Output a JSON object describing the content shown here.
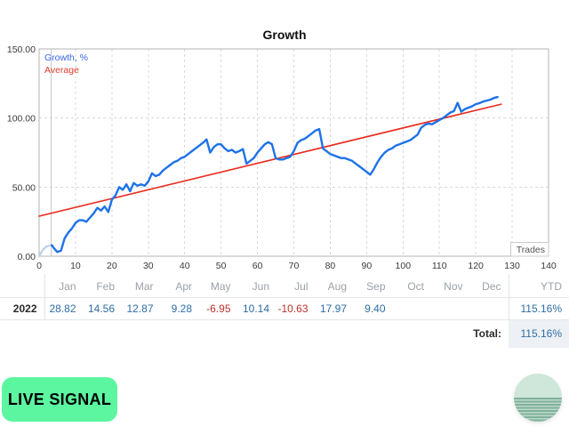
{
  "chart": {
    "title": "Growth",
    "axis_label": "Trades",
    "legend": [
      {
        "label": "Growth, %",
        "color": "#3867e6"
      },
      {
        "label": "Average",
        "color": "#e23b2e"
      }
    ]
  },
  "chart_data": {
    "type": "line",
    "title": "Growth",
    "xlabel": "Trades",
    "ylabel": "",
    "xlim": [
      0,
      140
    ],
    "ylim": [
      0,
      150
    ],
    "x_ticks": [
      0,
      10,
      20,
      30,
      40,
      50,
      60,
      70,
      80,
      90,
      100,
      110,
      120,
      130,
      140
    ],
    "y_ticks": [
      {
        "value": 0,
        "label": "0.00"
      },
      {
        "value": 50,
        "label": "50.00"
      },
      {
        "value": 100,
        "label": "100.00"
      },
      {
        "value": 150,
        "label": "150.00"
      }
    ],
    "grid": true,
    "legend_position": "top-left",
    "start_marker_x": 3.3,
    "series": [
      {
        "name": "Average",
        "color": "#e8291c",
        "width": 1.6,
        "points": [
          [
            0,
            29
          ],
          [
            127,
            110
          ]
        ]
      },
      {
        "name": "initial-segment",
        "color": "#b9cfe6",
        "width": 2.2,
        "points": [
          [
            0,
            0
          ],
          [
            1,
            4.5
          ],
          [
            2,
            7
          ],
          [
            3.5,
            8
          ]
        ]
      },
      {
        "name": "Growth, %",
        "color": "#1d72e8",
        "width": 2.4,
        "points": [
          [
            3.5,
            8
          ],
          [
            4,
            6
          ],
          [
            5,
            3
          ],
          [
            6,
            4
          ],
          [
            7,
            13
          ],
          [
            8,
            17
          ],
          [
            9,
            20
          ],
          [
            10,
            24
          ],
          [
            11,
            26
          ],
          [
            12,
            26
          ],
          [
            13,
            25
          ],
          [
            14,
            28
          ],
          [
            15,
            31
          ],
          [
            16,
            35
          ],
          [
            17,
            33
          ],
          [
            18,
            36
          ],
          [
            19,
            32
          ],
          [
            20,
            41
          ],
          [
            21,
            44
          ],
          [
            22,
            50
          ],
          [
            23,
            48
          ],
          [
            24,
            52
          ],
          [
            25,
            47
          ],
          [
            26,
            53
          ],
          [
            27,
            51
          ],
          [
            28,
            52
          ],
          [
            29,
            51
          ],
          [
            30,
            54
          ],
          [
            31,
            60
          ],
          [
            32,
            58
          ],
          [
            33,
            59
          ],
          [
            34,
            62
          ],
          [
            35,
            64
          ],
          [
            36,
            66
          ],
          [
            37,
            68
          ],
          [
            38,
            69
          ],
          [
            39,
            71
          ],
          [
            40,
            72
          ],
          [
            41,
            74
          ],
          [
            42,
            76
          ],
          [
            43,
            78
          ],
          [
            44,
            80
          ],
          [
            45,
            82
          ],
          [
            46,
            84.5
          ],
          [
            47,
            75
          ],
          [
            48,
            79
          ],
          [
            49,
            81
          ],
          [
            50,
            81
          ],
          [
            51,
            78
          ],
          [
            52,
            76
          ],
          [
            53,
            77
          ],
          [
            54,
            75
          ],
          [
            55,
            76
          ],
          [
            56,
            77.5
          ],
          [
            57,
            67
          ],
          [
            58,
            69
          ],
          [
            59,
            71
          ],
          [
            60,
            75
          ],
          [
            61,
            78
          ],
          [
            62,
            81
          ],
          [
            63,
            82.5
          ],
          [
            64,
            81
          ],
          [
            65,
            71
          ],
          [
            66,
            70
          ],
          [
            67,
            70
          ],
          [
            68,
            71
          ],
          [
            69,
            72
          ],
          [
            70,
            76
          ],
          [
            71,
            82
          ],
          [
            72,
            84
          ],
          [
            73,
            85
          ],
          [
            74,
            87
          ],
          [
            75,
            89
          ],
          [
            76,
            91
          ],
          [
            77,
            92
          ],
          [
            78,
            78
          ],
          [
            79,
            76
          ],
          [
            80,
            74
          ],
          [
            81,
            73
          ],
          [
            82,
            72
          ],
          [
            83,
            71
          ],
          [
            84,
            71
          ],
          [
            85,
            70
          ],
          [
            86,
            69
          ],
          [
            87,
            67
          ],
          [
            88,
            65
          ],
          [
            89,
            63
          ],
          [
            90,
            61
          ],
          [
            91,
            59
          ],
          [
            92,
            63
          ],
          [
            93,
            68
          ],
          [
            94,
            72
          ],
          [
            95,
            75
          ],
          [
            96,
            77
          ],
          [
            97,
            78
          ],
          [
            98,
            80
          ],
          [
            99,
            81
          ],
          [
            100,
            82
          ],
          [
            101,
            83
          ],
          [
            102,
            84
          ],
          [
            103,
            86
          ],
          [
            104,
            88
          ],
          [
            105,
            93
          ],
          [
            106,
            95
          ],
          [
            107,
            96
          ],
          [
            108,
            95.5
          ],
          [
            109,
            97
          ],
          [
            110,
            98.5
          ],
          [
            111,
            100
          ],
          [
            112,
            102
          ],
          [
            113,
            104
          ],
          [
            114,
            105
          ],
          [
            115,
            111
          ],
          [
            116,
            104.5
          ],
          [
            117,
            106.5
          ],
          [
            118,
            107.5
          ],
          [
            119,
            108.5
          ],
          [
            120,
            110
          ],
          [
            121,
            110.7
          ],
          [
            122,
            111.9
          ],
          [
            123,
            112.6
          ],
          [
            124,
            113.3
          ],
          [
            125,
            114.5
          ],
          [
            126,
            115.16
          ]
        ]
      }
    ]
  },
  "table": {
    "headers": [
      "",
      "Jan",
      "Feb",
      "Mar",
      "Apr",
      "May",
      "Jun",
      "Jul",
      "Aug",
      "Sep",
      "Oct",
      "Nov",
      "Dec",
      "YTD"
    ],
    "rows": [
      {
        "year": "2022",
        "values": [
          "28.82",
          "14.56",
          "12.87",
          "9.28",
          "-6.95",
          "10.14",
          "-10.63",
          "17.97",
          "9.40",
          "",
          "",
          ""
        ],
        "ytd": "115.16%"
      }
    ],
    "total_label": "Total:",
    "total_value": "115.16%"
  },
  "footer": {
    "live_signal_label": "LIVE SIGNAL",
    "button_color": "#5cf6a1",
    "logo_top_color": "#cfe7da",
    "logo_stripe_color": "#7fb29c"
  }
}
